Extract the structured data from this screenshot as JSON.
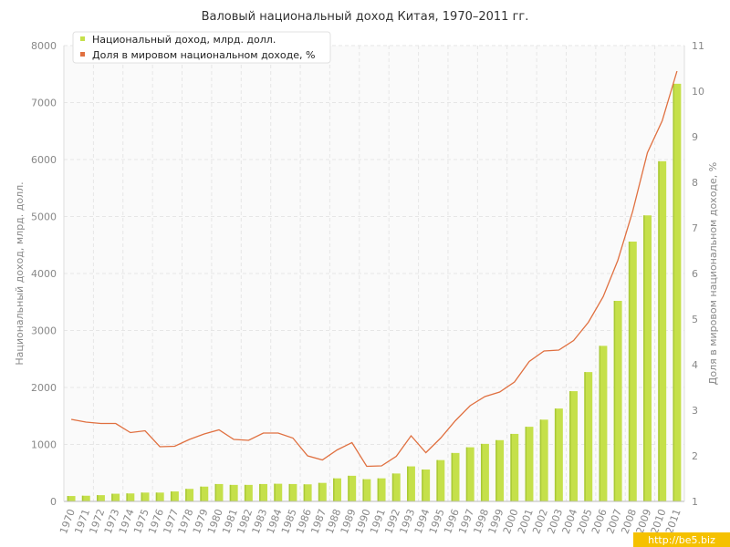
{
  "chart_data": {
    "type": "bar",
    "title": "Валовый национальный доход Китая, 1970–2011 гг.",
    "categories": [
      "1970",
      "1971",
      "1972",
      "1973",
      "1974",
      "1975",
      "1976",
      "1977",
      "1978",
      "1979",
      "1980",
      "1981",
      "1982",
      "1983",
      "1984",
      "1985",
      "1986",
      "1987",
      "1988",
      "1989",
      "1990",
      "1991",
      "1992",
      "1993",
      "1994",
      "1995",
      "1996",
      "1997",
      "1998",
      "1999",
      "2000",
      "2001",
      "2002",
      "2003",
      "2004",
      "2005",
      "2006",
      "2007",
      "2008",
      "2009",
      "2010",
      "2011"
    ],
    "ylabel": "Национальный доход, млрд. долл.",
    "y2label": "Доля в мировом национальном доходе, %",
    "ylim": [
      0,
      8000
    ],
    "y2lim": [
      1,
      11
    ],
    "yticks": [
      0,
      1000,
      2000,
      3000,
      4000,
      5000,
      6000,
      7000,
      8000
    ],
    "y2ticks": [
      1,
      2,
      3,
      4,
      5,
      6,
      7,
      8,
      9,
      10,
      11
    ],
    "grid": true,
    "legend_position": "top-left",
    "series": [
      {
        "name": "Национальный доход, млрд. долл.",
        "type": "bar",
        "axis": "left",
        "color": "#c5e04a",
        "values": [
          95,
          100,
          110,
          135,
          140,
          155,
          155,
          175,
          220,
          260,
          305,
          290,
          290,
          305,
          310,
          305,
          300,
          325,
          405,
          450,
          390,
          405,
          490,
          615,
          560,
          725,
          850,
          950,
          1010,
          1075,
          1185,
          1310,
          1435,
          1630,
          1935,
          2270,
          2730,
          3520,
          4560,
          5020,
          5970,
          7330
        ]
      },
      {
        "name": "Доля в мировом национальном доходе, %",
        "type": "line",
        "axis": "right",
        "color": "#e07040",
        "values": [
          2.8,
          2.74,
          2.71,
          2.71,
          2.51,
          2.55,
          2.2,
          2.21,
          2.36,
          2.48,
          2.57,
          2.36,
          2.34,
          2.5,
          2.5,
          2.39,
          2.0,
          1.91,
          2.13,
          2.29,
          1.77,
          1.78,
          1.99,
          2.44,
          2.07,
          2.39,
          2.77,
          3.1,
          3.3,
          3.4,
          3.62,
          4.07,
          4.3,
          4.32,
          4.53,
          4.93,
          5.49,
          6.29,
          7.36,
          8.65,
          9.35,
          10.44
        ]
      }
    ]
  },
  "colors": {
    "grid": "#e6e6e6",
    "axis": "#bbbbbb"
  },
  "watermark": "http://be5.biz"
}
